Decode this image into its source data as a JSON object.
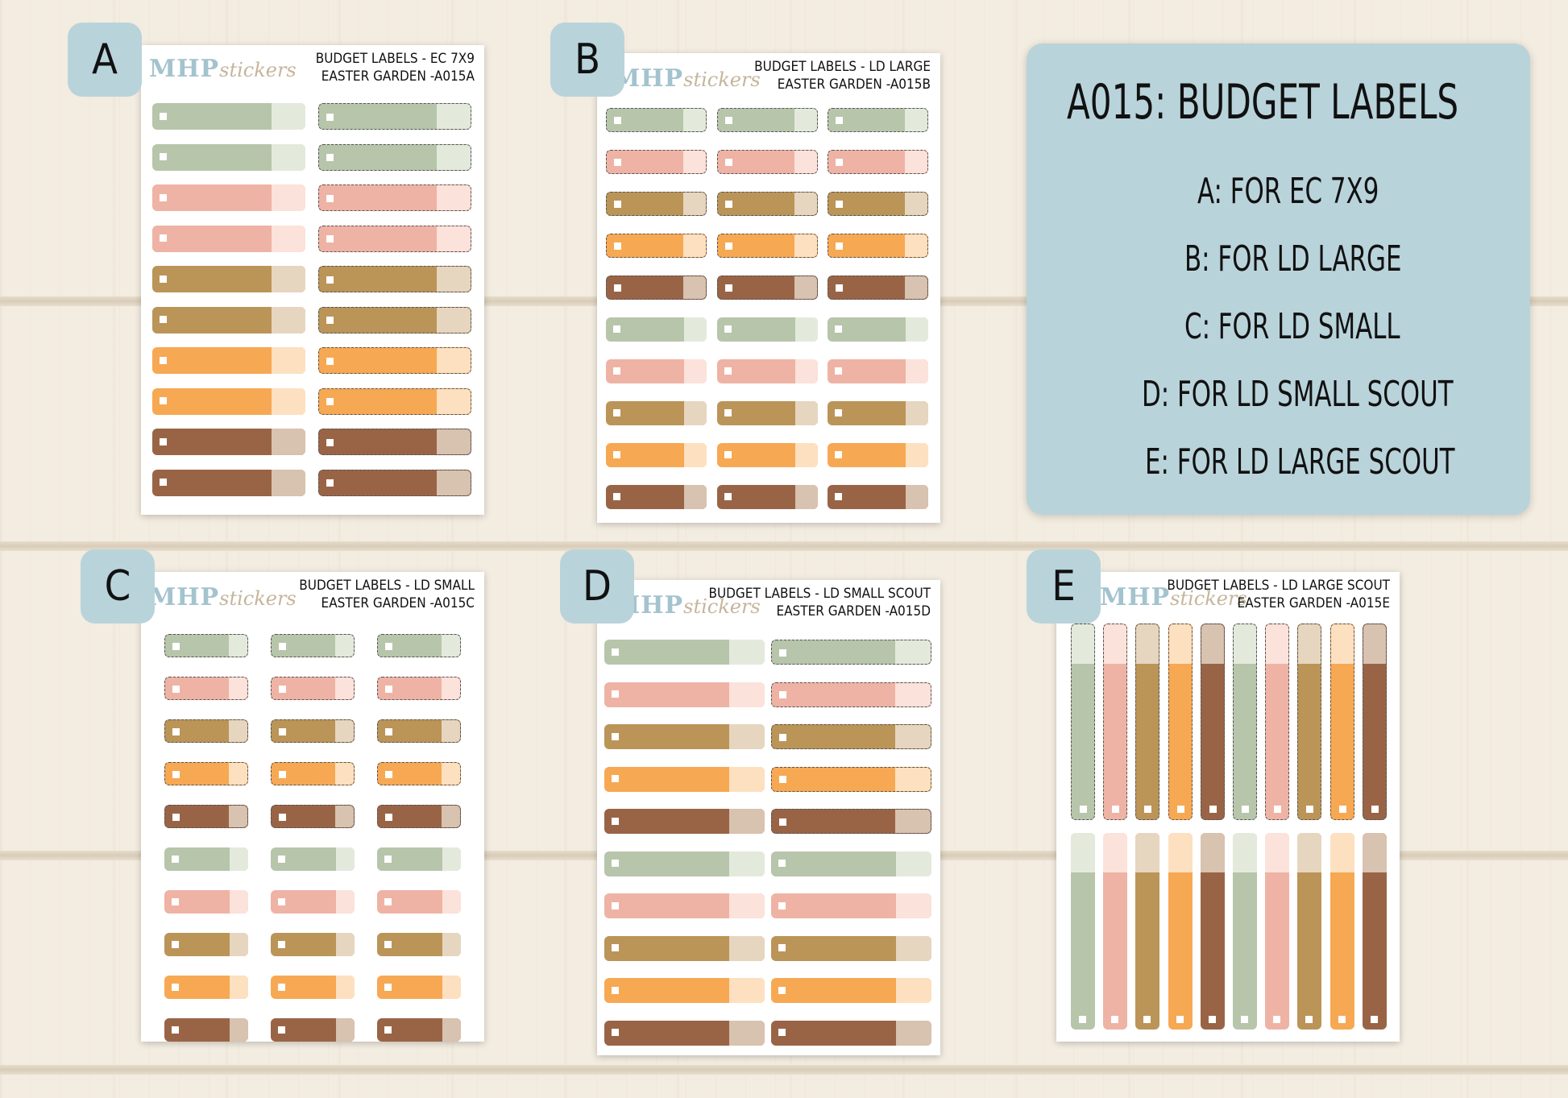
{
  "info_panel": {
    "title": "A015: BUDGET LABELS",
    "lines": [
      "A: FOR EC 7X9",
      "B: FOR LD LARGE",
      "C: FOR LD SMALL",
      "D: FOR LD SMALL SCOUT",
      "E: FOR LD LARGE SCOUT"
    ]
  },
  "brand": {
    "logo_main": "MHP",
    "logo_sub": "stickers"
  },
  "colors": {
    "sage": "#b7c5ab",
    "sage_tip": "#e3eadc",
    "pink": "#eeb3a4",
    "pink_tip": "#fbe2da",
    "gold": "#bb9458",
    "gold_tip": "#e6d6c0",
    "orange": "#f7a853",
    "orange_tip": "#fde0c0",
    "brown": "#996446",
    "brown_tip": "#d8c2b0"
  },
  "sheets": {
    "a": {
      "badge": "A",
      "title_line1": "BUDGET LABELS - EC 7X9",
      "title_line2": "EASTER GARDEN -A015A"
    },
    "b": {
      "badge": "B",
      "title_line1": "BUDGET LABELS - LD LARGE",
      "title_line2": "EASTER GARDEN -A015B"
    },
    "c": {
      "badge": "C",
      "title_line1": "BUDGET LABELS - LD SMALL",
      "title_line2": "EASTER GARDEN -A015C"
    },
    "d": {
      "badge": "D",
      "title_line1": "BUDGET LABELS - LD SMALL SCOUT",
      "title_line2": "EASTER GARDEN -A015D"
    },
    "e": {
      "badge": "E",
      "title_line1": "BUDGET LABELS - LD LARGE SCOUT",
      "title_line2": "EASTER GARDEN -A015E"
    }
  }
}
